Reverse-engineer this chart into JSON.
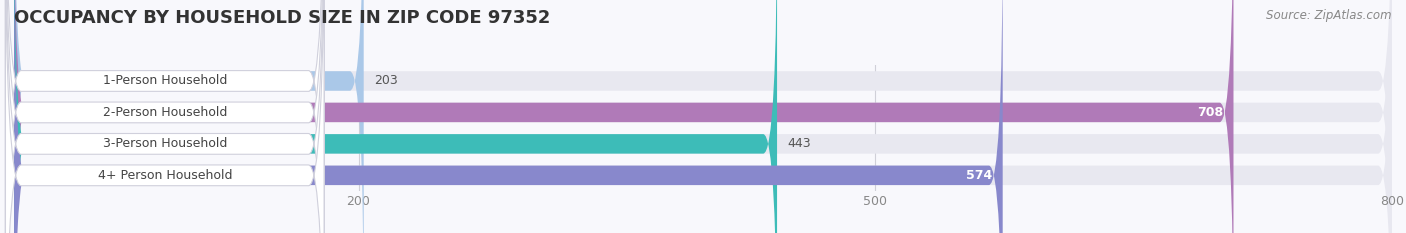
{
  "title": "OCCUPANCY BY HOUSEHOLD SIZE IN ZIP CODE 97352",
  "source": "Source: ZipAtlas.com",
  "categories": [
    "1-Person Household",
    "2-Person Household",
    "3-Person Household",
    "4+ Person Household"
  ],
  "values": [
    203,
    708,
    443,
    574
  ],
  "bar_colors": [
    "#aac8e8",
    "#b07ab8",
    "#3dbcb8",
    "#8888cc"
  ],
  "bar_bg_color": "#e8e8f0",
  "xlim": [
    0,
    800
  ],
  "xticks": [
    200,
    500,
    800
  ],
  "value_label_inside": [
    false,
    true,
    false,
    true
  ],
  "title_fontsize": 13,
  "source_fontsize": 8.5,
  "tick_fontsize": 9,
  "bar_label_fontsize": 9,
  "category_fontsize": 9,
  "figsize": [
    14.06,
    2.33
  ],
  "dpi": 100,
  "bg_color": "#f8f8fc"
}
